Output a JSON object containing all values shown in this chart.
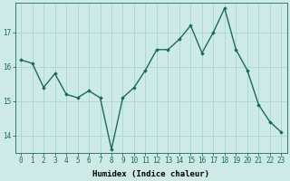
{
  "x": [
    0,
    1,
    2,
    3,
    4,
    5,
    6,
    7,
    8,
    9,
    10,
    11,
    12,
    13,
    14,
    15,
    16,
    17,
    18,
    19,
    20,
    21,
    22,
    23
  ],
  "y": [
    16.2,
    16.1,
    15.4,
    15.8,
    15.2,
    15.1,
    15.3,
    15.1,
    13.6,
    15.1,
    15.4,
    15.9,
    16.5,
    16.5,
    16.8,
    17.2,
    16.4,
    17.0,
    17.7,
    16.5,
    15.9,
    14.9,
    14.4,
    14.1
  ],
  "line_color": "#1a6b5a",
  "marker": "D",
  "marker_size": 1.8,
  "bg_color": "#ceeae6",
  "grid_color": "#a8d8d3",
  "xlabel": "Humidex (Indice chaleur)",
  "ylim": [
    13.5,
    17.85
  ],
  "xlim": [
    -0.5,
    23.5
  ],
  "yticks": [
    14,
    15,
    16,
    17
  ],
  "xticks": [
    0,
    1,
    2,
    3,
    4,
    5,
    6,
    7,
    8,
    9,
    10,
    11,
    12,
    13,
    14,
    15,
    16,
    17,
    18,
    19,
    20,
    21,
    22,
    23
  ],
  "tick_fontsize": 5.5,
  "label_fontsize": 6.5,
  "linewidth": 1.0
}
